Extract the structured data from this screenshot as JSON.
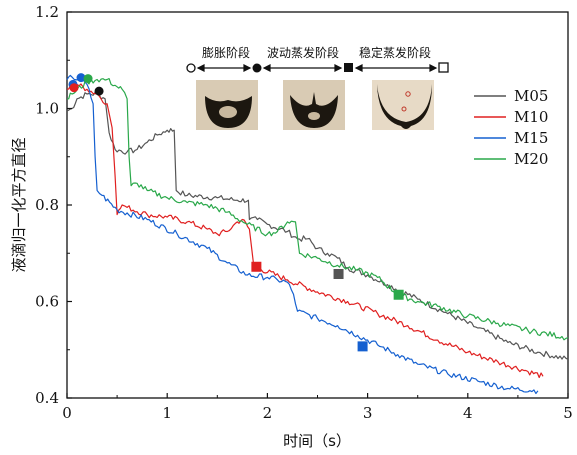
{
  "chart_data": {
    "type": "line",
    "xlabel": "时间（s）",
    "ylabel": "液滴归一化平方直径",
    "xlim": [
      0,
      5
    ],
    "ylim": [
      0.4,
      1.2
    ],
    "xticks": [
      "0",
      "1",
      "2",
      "3",
      "4",
      "5"
    ],
    "yticks": [
      "0.4",
      "0.6",
      "0.8",
      "1.0",
      "1.2"
    ],
    "grid": false,
    "legend_position": "right",
    "stages": {
      "labels": [
        "膨胀阶段",
        "波动蒸发阶段",
        "稳定蒸发阶段"
      ]
    },
    "series": [
      {
        "name": "M05",
        "color": "#555555",
        "points": [
          [
            0,
            0.995
          ],
          [
            0.05,
            1.0
          ],
          [
            0.1,
            1.02
          ],
          [
            0.2,
            1.03
          ],
          [
            0.3,
            1.03
          ],
          [
            0.38,
            1.02
          ],
          [
            0.42,
            0.95
          ],
          [
            0.48,
            0.915
          ],
          [
            0.6,
            0.91
          ],
          [
            0.7,
            0.915
          ],
          [
            0.8,
            0.93
          ],
          [
            0.9,
            0.945
          ],
          [
            1.0,
            0.955
          ],
          [
            1.07,
            0.955
          ],
          [
            1.09,
            0.83
          ],
          [
            1.2,
            0.82
          ],
          [
            1.5,
            0.815
          ],
          [
            1.7,
            0.81
          ],
          [
            1.81,
            0.81
          ],
          [
            1.82,
            0.77
          ],
          [
            1.9,
            0.77
          ],
          [
            2.0,
            0.76
          ],
          [
            2.2,
            0.745
          ],
          [
            2.3,
            0.73
          ],
          [
            2.4,
            0.73
          ],
          [
            2.5,
            0.71
          ],
          [
            2.6,
            0.7
          ],
          [
            2.7,
            0.69
          ],
          [
            2.8,
            0.67
          ],
          [
            3.0,
            0.655
          ],
          [
            3.2,
            0.635
          ],
          [
            3.5,
            0.605
          ],
          [
            3.8,
            0.575
          ],
          [
            4.1,
            0.545
          ],
          [
            4.4,
            0.515
          ],
          [
            4.7,
            0.495
          ],
          [
            5.0,
            0.48
          ]
        ],
        "marker": {
          "x": 2.71,
          "y": 0.657
        }
      },
      {
        "name": "M10",
        "color": "#e02020",
        "points": [
          [
            0,
            1.04
          ],
          [
            0.05,
            1.045
          ],
          [
            0.1,
            1.05
          ],
          [
            0.2,
            1.04
          ],
          [
            0.3,
            1.03
          ],
          [
            0.4,
            1.01
          ],
          [
            0.45,
            0.96
          ],
          [
            0.48,
            0.86
          ],
          [
            0.5,
            0.78
          ],
          [
            0.55,
            0.8
          ],
          [
            0.6,
            0.795
          ],
          [
            0.8,
            0.78
          ],
          [
            1.0,
            0.775
          ],
          [
            1.2,
            0.765
          ],
          [
            1.4,
            0.75
          ],
          [
            1.5,
            0.74
          ],
          [
            1.6,
            0.745
          ],
          [
            1.7,
            0.765
          ],
          [
            1.75,
            0.77
          ],
          [
            1.82,
            0.75
          ],
          [
            1.86,
            0.68
          ],
          [
            1.9,
            0.67
          ],
          [
            2.2,
            0.645
          ],
          [
            2.5,
            0.62
          ],
          [
            2.8,
            0.6
          ],
          [
            3.1,
            0.575
          ],
          [
            3.4,
            0.55
          ],
          [
            3.7,
            0.52
          ],
          [
            4.0,
            0.495
          ],
          [
            4.3,
            0.475
          ],
          [
            4.6,
            0.455
          ],
          [
            4.75,
            0.445
          ]
        ],
        "marker": {
          "x": 1.89,
          "y": 0.672
        }
      },
      {
        "name": "M15",
        "color": "#1560d0",
        "points": [
          [
            0,
            1.06
          ],
          [
            0.05,
            1.065
          ],
          [
            0.12,
            1.06
          ],
          [
            0.2,
            1.05
          ],
          [
            0.26,
            1.01
          ],
          [
            0.28,
            0.9
          ],
          [
            0.3,
            0.83
          ],
          [
            0.35,
            0.82
          ],
          [
            0.5,
            0.79
          ],
          [
            0.8,
            0.77
          ],
          [
            1.1,
            0.74
          ],
          [
            1.4,
            0.71
          ],
          [
            1.6,
            0.68
          ],
          [
            1.8,
            0.655
          ],
          [
            2.0,
            0.65
          ],
          [
            2.1,
            0.645
          ],
          [
            2.2,
            0.64
          ],
          [
            2.26,
            0.615
          ],
          [
            2.3,
            0.58
          ],
          [
            2.5,
            0.565
          ],
          [
            2.7,
            0.55
          ],
          [
            2.9,
            0.53
          ],
          [
            3.1,
            0.51
          ],
          [
            3.3,
            0.49
          ],
          [
            3.5,
            0.47
          ],
          [
            3.8,
            0.45
          ],
          [
            4.1,
            0.435
          ],
          [
            4.4,
            0.42
          ],
          [
            4.7,
            0.415
          ]
        ],
        "marker": {
          "x": 2.95,
          "y": 0.507
        }
      },
      {
        "name": "M20",
        "color": "#2aa84a",
        "points": [
          [
            0,
            1.02
          ],
          [
            0.05,
            1.03
          ],
          [
            0.2,
            1.055
          ],
          [
            0.3,
            1.06
          ],
          [
            0.4,
            1.06
          ],
          [
            0.5,
            1.045
          ],
          [
            0.55,
            1.04
          ],
          [
            0.6,
            1.02
          ],
          [
            0.62,
            0.9
          ],
          [
            0.64,
            0.84
          ],
          [
            0.7,
            0.845
          ],
          [
            0.8,
            0.83
          ],
          [
            1.0,
            0.815
          ],
          [
            1.2,
            0.805
          ],
          [
            1.4,
            0.8
          ],
          [
            1.6,
            0.785
          ],
          [
            1.8,
            0.76
          ],
          [
            2.0,
            0.74
          ],
          [
            2.1,
            0.745
          ],
          [
            2.2,
            0.765
          ],
          [
            2.28,
            0.765
          ],
          [
            2.32,
            0.7
          ],
          [
            2.5,
            0.69
          ],
          [
            2.7,
            0.675
          ],
          [
            2.9,
            0.665
          ],
          [
            3.1,
            0.65
          ],
          [
            3.3,
            0.615
          ],
          [
            3.5,
            0.6
          ],
          [
            3.7,
            0.59
          ],
          [
            4.0,
            0.57
          ],
          [
            4.3,
            0.555
          ],
          [
            4.6,
            0.54
          ],
          [
            5.0,
            0.525
          ]
        ],
        "marker": {
          "x": 3.31,
          "y": 0.614
        }
      }
    ],
    "peak_markers": [
      {
        "x": 0.06,
        "y": 1.05,
        "color": "#1560d0"
      },
      {
        "x": 0.07,
        "y": 1.043,
        "color": "#e02020"
      },
      {
        "x": 0.14,
        "y": 1.064,
        "color": "#1560d0"
      },
      {
        "x": 0.21,
        "y": 1.062,
        "color": "#2aa84a"
      },
      {
        "x": 0.32,
        "y": 1.036,
        "color": "#111111"
      }
    ]
  }
}
